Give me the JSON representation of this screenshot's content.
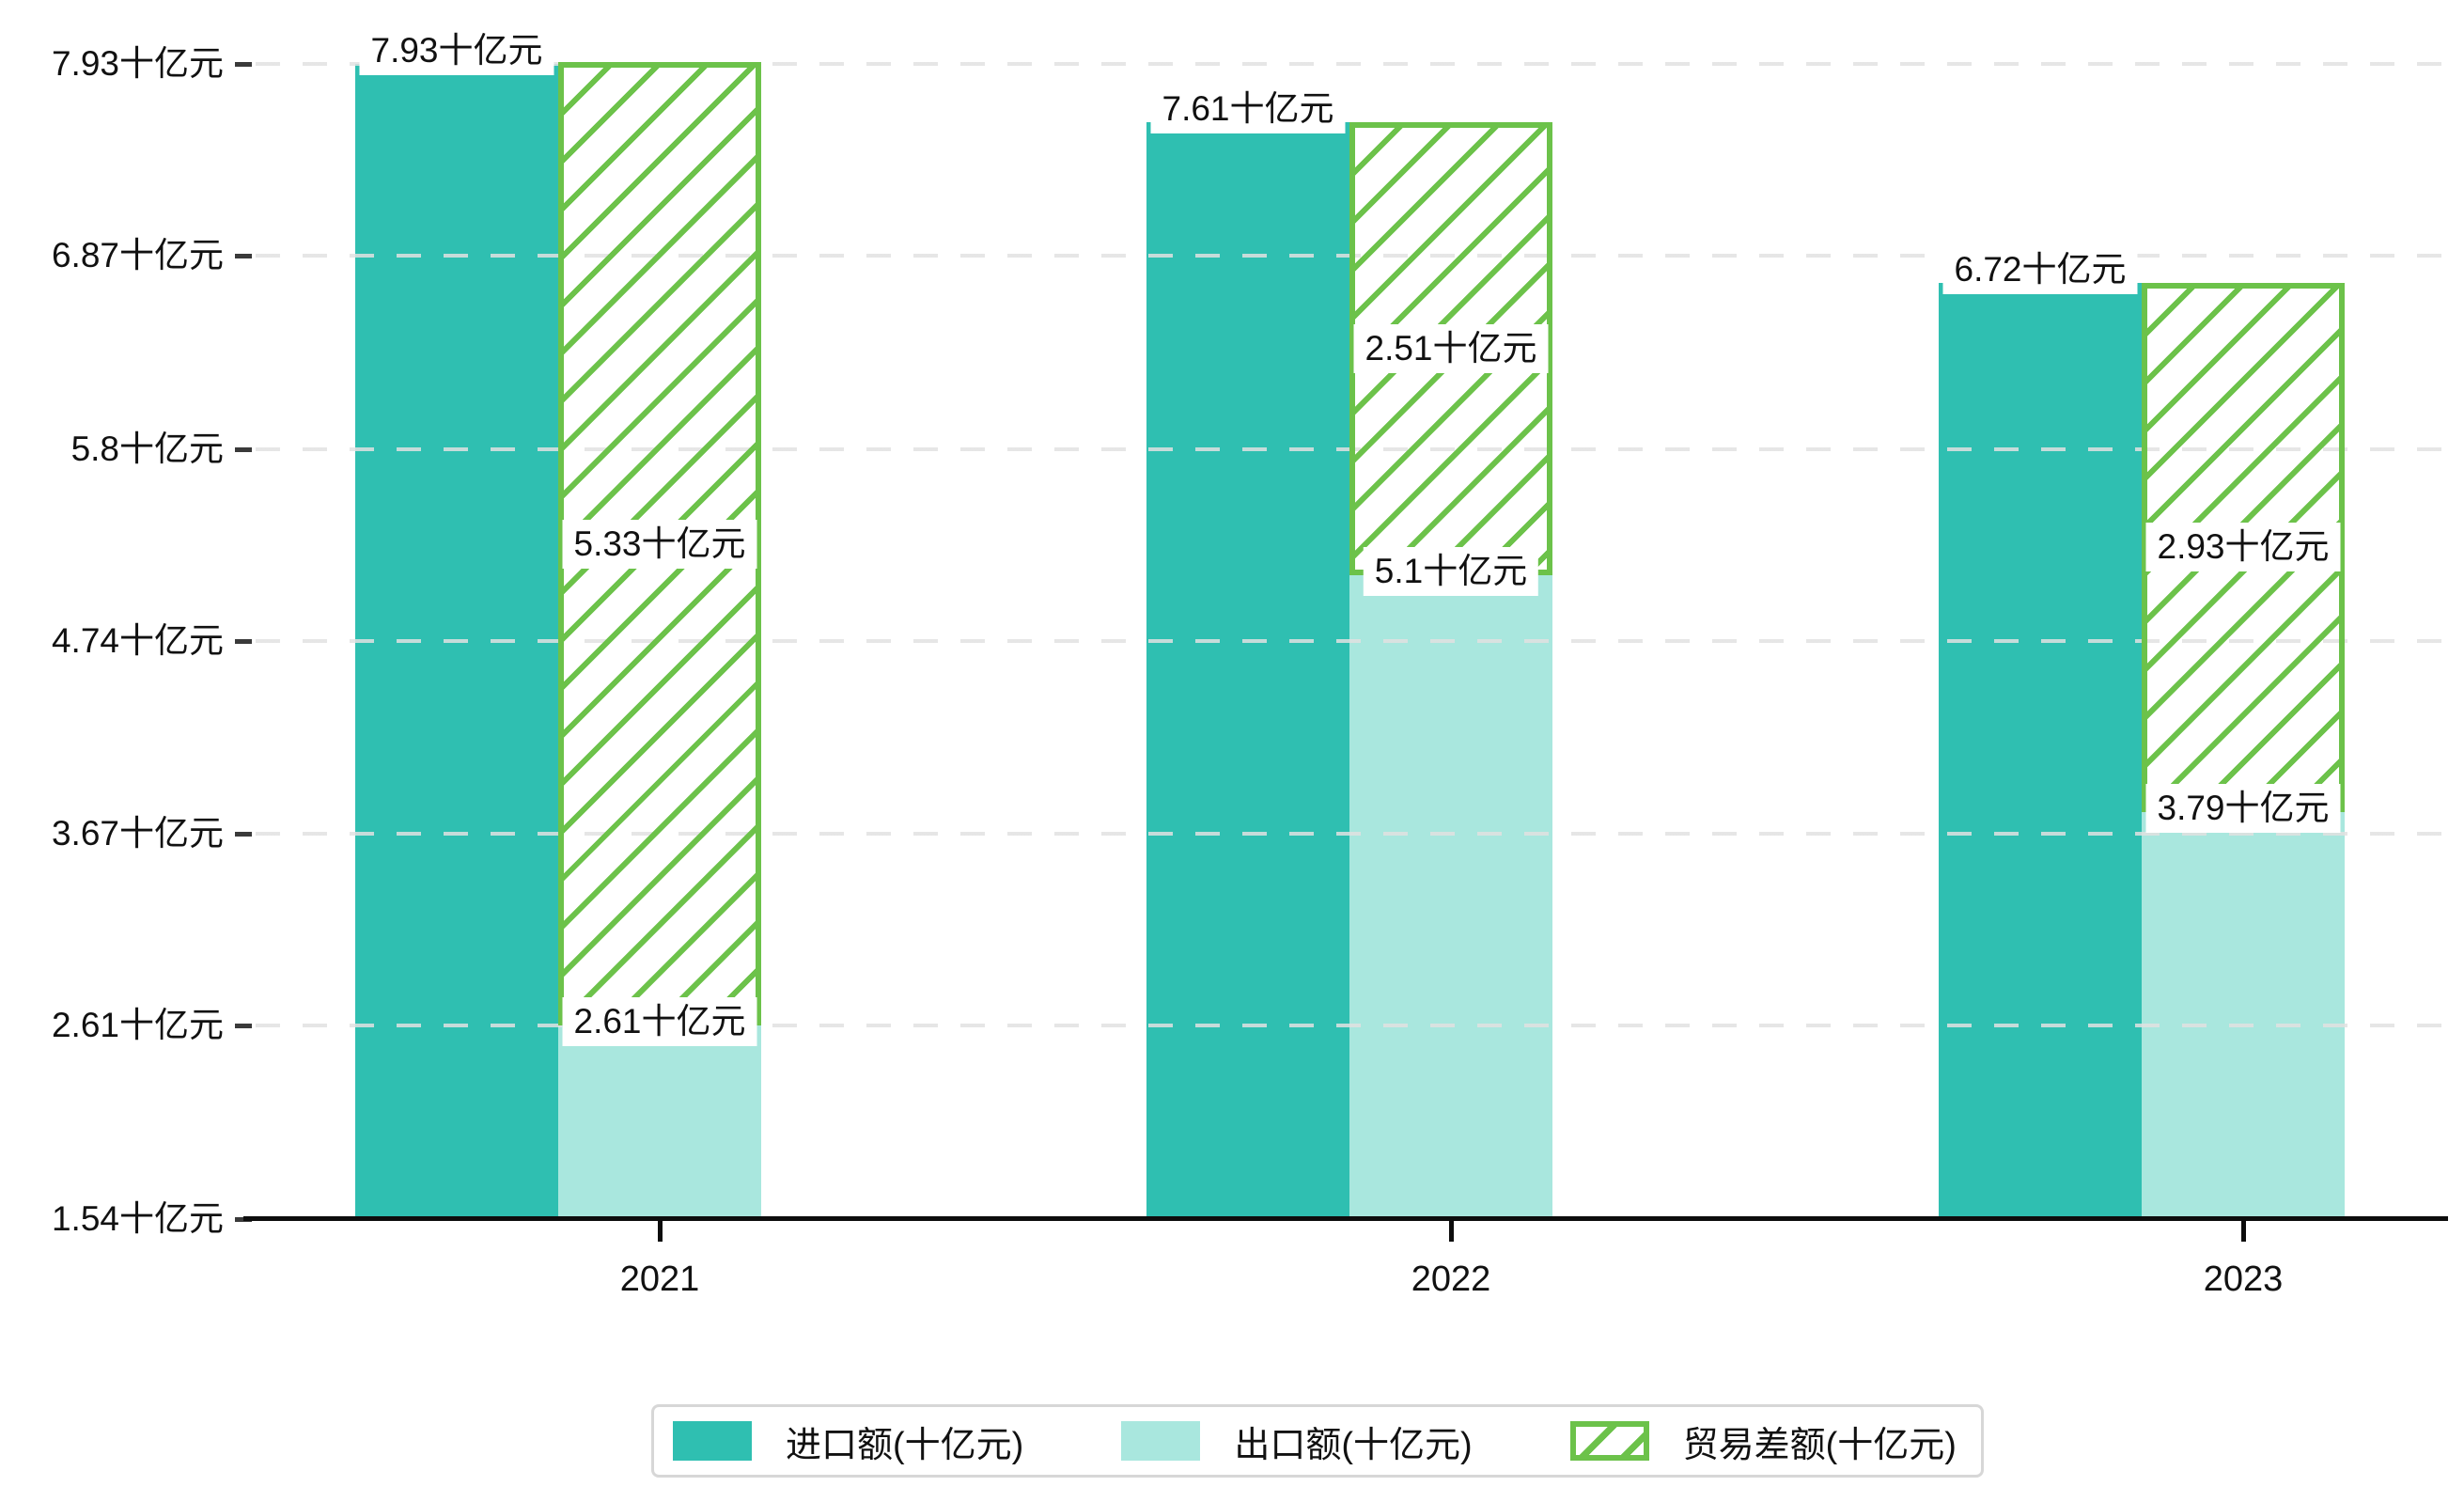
{
  "chart_data": {
    "type": "bar",
    "categories": [
      "2021",
      "2022",
      "2023"
    ],
    "series": [
      {
        "name": "进口额(十亿元)",
        "role": "import",
        "values": [
          7.93,
          7.61,
          6.72
        ],
        "data_labels": [
          "7.93十亿元",
          "7.61十亿元",
          "6.72十亿元"
        ]
      },
      {
        "name": "出口额(十亿元)",
        "role": "export",
        "values": [
          2.61,
          5.1,
          3.79
        ],
        "data_labels": [
          "2.61十亿元",
          "5.1十亿元",
          "3.79十亿元"
        ]
      },
      {
        "name": "贸易差额(十亿元)",
        "role": "trade-gap",
        "values": [
          5.33,
          2.51,
          2.93
        ],
        "data_labels": [
          "5.33十亿元",
          "2.51十亿元",
          "2.93十亿元"
        ],
        "render": "hatched bar stacked on top of export bar (spans export value to export+gap)"
      }
    ],
    "ylim": [
      1.54,
      7.93
    ],
    "y_tick_values": [
      7.93,
      6.87,
      5.8,
      4.74,
      3.67,
      2.61,
      1.54
    ],
    "y_tick_labels": [
      "7.93十亿元",
      "6.87十亿元",
      "5.8十亿元",
      "4.74十亿元",
      "3.67十亿元",
      "2.61十亿元",
      "1.54十亿元"
    ],
    "x_tick_labels": [
      "2021",
      "2022",
      "2023"
    ],
    "grid": "horizontal dashed",
    "legend_position": "bottom-center",
    "title": "",
    "xlabel": "",
    "ylabel": ""
  },
  "legend": {
    "items": [
      {
        "label": "进口额(十亿元)",
        "swatch": "solid-teal"
      },
      {
        "label": "出口额(十亿元)",
        "swatch": "solid-light-teal"
      },
      {
        "label": "贸易差额(十亿元)",
        "swatch": "green-hatched"
      }
    ]
  },
  "colors": {
    "import_bar": "#2fbfb1",
    "export_bar": "#a9e7de",
    "trade_gap_hatch": "#6cc24a",
    "grid_line": "#e1e1e1",
    "axis_line": "#0d0d0d",
    "text": "#111111",
    "legend_border": "#d7d7d7",
    "label_background": "#ffffff"
  }
}
